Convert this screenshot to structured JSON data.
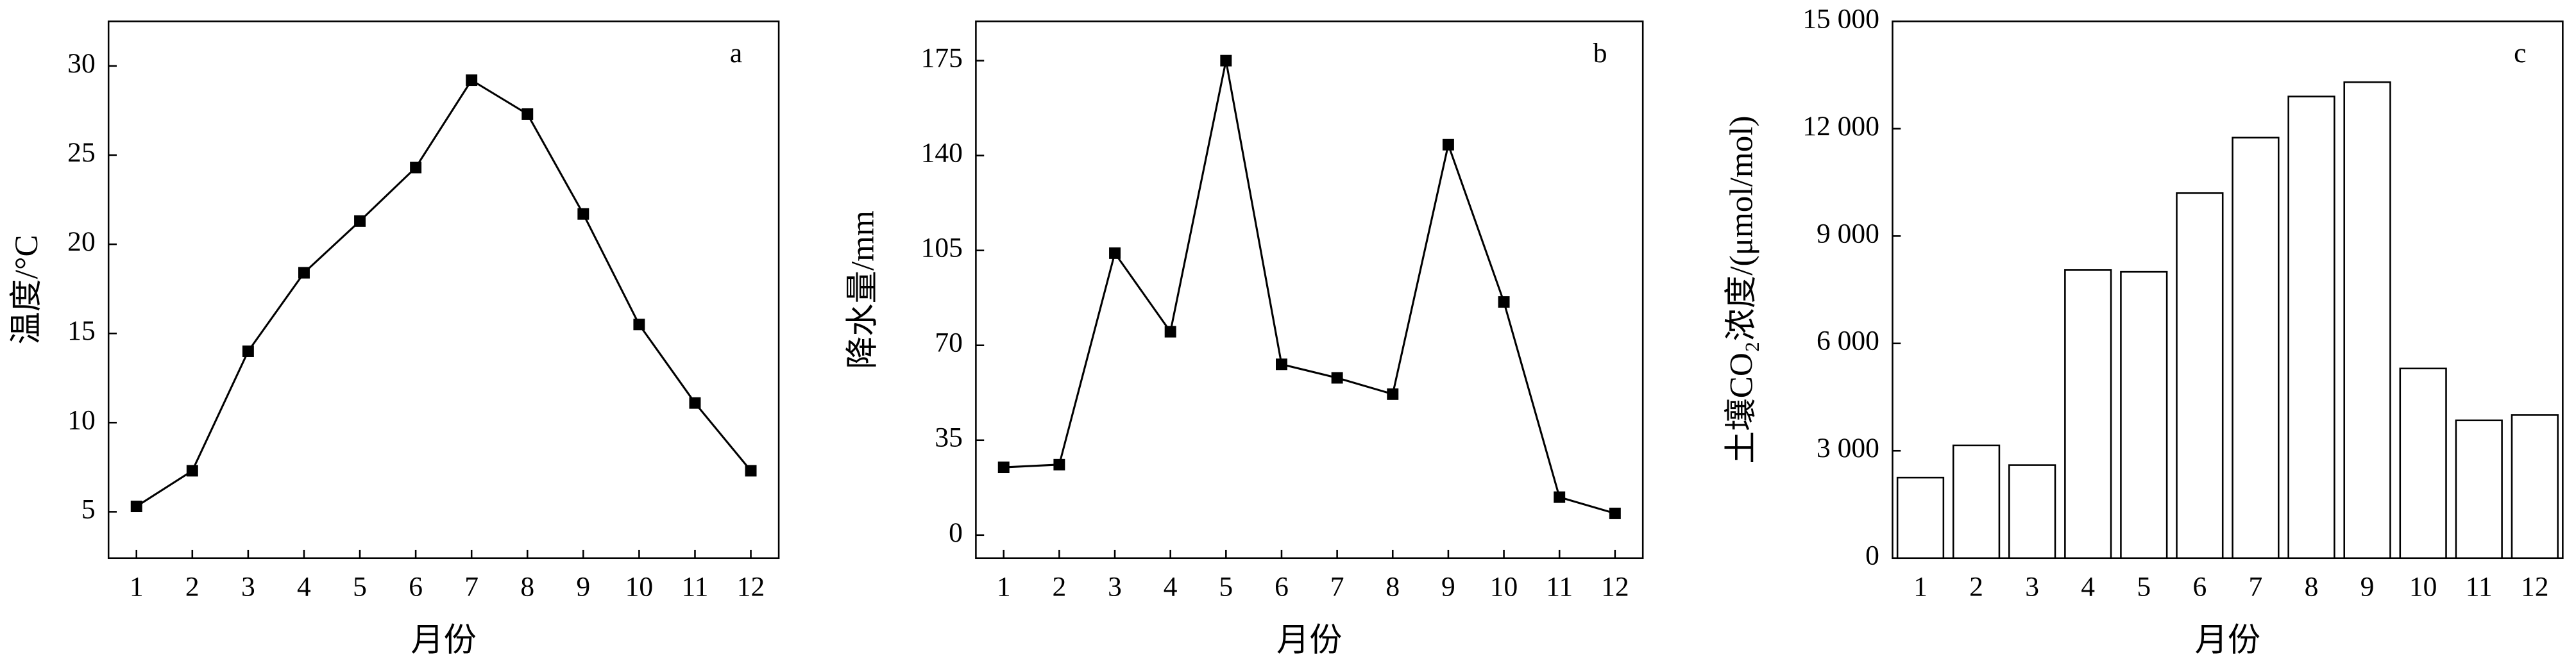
{
  "chart_data": [
    {
      "type": "line",
      "annotation": "a",
      "x_label": "月份",
      "y_label": "温度/°C",
      "categories": [
        "1",
        "2",
        "3",
        "4",
        "5",
        "6",
        "7",
        "8",
        "9",
        "10",
        "11",
        "12"
      ],
      "values": [
        5.3,
        7.3,
        14.0,
        18.4,
        21.3,
        24.3,
        29.2,
        27.3,
        21.7,
        15.5,
        11.1,
        7.3
      ],
      "color": "#000000",
      "ylim": [
        2.4,
        32.5
      ],
      "yticks": [
        5,
        10,
        15,
        20,
        25,
        30
      ]
    },
    {
      "type": "line",
      "annotation": "b",
      "x_label": "月份",
      "y_label": "降水量/mm",
      "categories": [
        "1",
        "2",
        "3",
        "4",
        "5",
        "6",
        "7",
        "8",
        "9",
        "10",
        "11",
        "12"
      ],
      "values": [
        25,
        26,
        104,
        75,
        175,
        63,
        58,
        52,
        144,
        86,
        14,
        8
      ],
      "color": "#000000",
      "ylim": [
        -8.5,
        189.5
      ],
      "yticks": [
        0,
        35,
        70,
        105,
        140,
        175
      ]
    },
    {
      "type": "bar",
      "annotation": "c",
      "x_label": "月份",
      "y_label": "土壤CO₂浓度/(μmol/mol)",
      "categories": [
        "1",
        "2",
        "3",
        "4",
        "5",
        "6",
        "7",
        "8",
        "9",
        "10",
        "11",
        "12"
      ],
      "values": [
        2250,
        3150,
        2600,
        8050,
        8000,
        10200,
        11750,
        12900,
        13300,
        5300,
        3850,
        4000
      ],
      "color": "#ffffff",
      "ylim": [
        0,
        15000
      ],
      "yticks": [
        0,
        {
          "value": 3000,
          "label": "3 000"
        },
        {
          "value": 6000,
          "label": "6 000"
        },
        {
          "value": 9000,
          "label": "9 000"
        },
        {
          "value": 12000,
          "label": "12 000"
        },
        {
          "value": 15000,
          "label": "15 000"
        }
      ]
    }
  ]
}
